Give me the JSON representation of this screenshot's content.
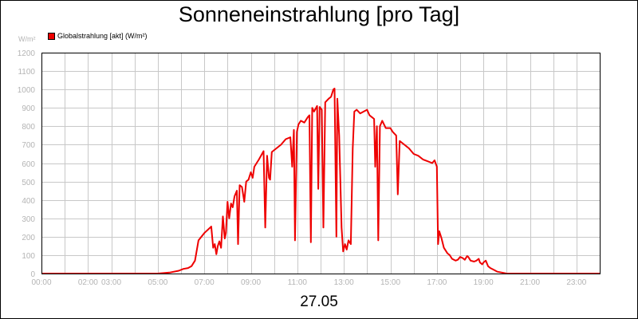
{
  "chart_data": {
    "type": "line",
    "title": "Sonneneinstrahlung [pro Tag]",
    "date": "27.05",
    "y_unit": "W/m²",
    "ylim": [
      0,
      1200
    ],
    "y_ticks": [
      0,
      100,
      200,
      300,
      400,
      500,
      600,
      700,
      800,
      900,
      1000,
      1100,
      1200
    ],
    "xlim": [
      0,
      24
    ],
    "x_ticks": [
      {
        "hour": 0,
        "label": "00:00"
      },
      {
        "hour": 2,
        "label": "02:00"
      },
      {
        "hour": 3,
        "label": "03:00"
      },
      {
        "hour": 5,
        "label": "05:00"
      },
      {
        "hour": 7,
        "label": "07:00"
      },
      {
        "hour": 9,
        "label": "09:00"
      },
      {
        "hour": 11,
        "label": "11:00"
      },
      {
        "hour": 13,
        "label": "13:00"
      },
      {
        "hour": 15,
        "label": "15:00"
      },
      {
        "hour": 17,
        "label": "17:00"
      },
      {
        "hour": 19,
        "label": "19:00"
      },
      {
        "hour": 21,
        "label": "21:00"
      },
      {
        "hour": 23,
        "label": "23:00"
      }
    ],
    "grid": true,
    "legend_position": "top-left",
    "series": [
      {
        "name": "Globalstrahlung [akt] (W/m²)",
        "color": "#ee0000",
        "points": [
          [
            0.0,
            0
          ],
          [
            5.0,
            0
          ],
          [
            5.5,
            5
          ],
          [
            5.9,
            15
          ],
          [
            6.1,
            25
          ],
          [
            6.3,
            30
          ],
          [
            6.45,
            40
          ],
          [
            6.6,
            70
          ],
          [
            6.75,
            180
          ],
          [
            7.0,
            220
          ],
          [
            7.3,
            255
          ],
          [
            7.38,
            140
          ],
          [
            7.45,
            160
          ],
          [
            7.52,
            105
          ],
          [
            7.58,
            150
          ],
          [
            7.65,
            175
          ],
          [
            7.72,
            140
          ],
          [
            7.8,
            310
          ],
          [
            7.88,
            190
          ],
          [
            7.93,
            220
          ],
          [
            8.0,
            390
          ],
          [
            8.07,
            300
          ],
          [
            8.15,
            380
          ],
          [
            8.22,
            360
          ],
          [
            8.3,
            420
          ],
          [
            8.4,
            450
          ],
          [
            8.45,
            160
          ],
          [
            8.52,
            480
          ],
          [
            8.62,
            470
          ],
          [
            8.72,
            390
          ],
          [
            8.8,
            500
          ],
          [
            8.9,
            510
          ],
          [
            9.0,
            550
          ],
          [
            9.08,
            520
          ],
          [
            9.15,
            580
          ],
          [
            9.25,
            600
          ],
          [
            9.35,
            620
          ],
          [
            9.55,
            665
          ],
          [
            9.62,
            250
          ],
          [
            9.7,
            640
          ],
          [
            9.78,
            520
          ],
          [
            9.83,
            510
          ],
          [
            9.9,
            660
          ],
          [
            10.1,
            680
          ],
          [
            10.3,
            700
          ],
          [
            10.5,
            730
          ],
          [
            10.7,
            740
          ],
          [
            10.78,
            580
          ],
          [
            10.85,
            780
          ],
          [
            10.9,
            180
          ],
          [
            10.98,
            770
          ],
          [
            11.05,
            810
          ],
          [
            11.15,
            830
          ],
          [
            11.3,
            820
          ],
          [
            11.45,
            850
          ],
          [
            11.52,
            860
          ],
          [
            11.58,
            170
          ],
          [
            11.64,
            900
          ],
          [
            11.72,
            880
          ],
          [
            11.85,
            910
          ],
          [
            11.9,
            460
          ],
          [
            11.96,
            905
          ],
          [
            12.05,
            890
          ],
          [
            12.12,
            250
          ],
          [
            12.2,
            930
          ],
          [
            12.35,
            950
          ],
          [
            12.45,
            960
          ],
          [
            12.55,
            1000
          ],
          [
            12.6,
            1005
          ],
          [
            12.68,
            200
          ],
          [
            12.72,
            950
          ],
          [
            12.8,
            750
          ],
          [
            12.9,
            250
          ],
          [
            12.97,
            120
          ],
          [
            13.05,
            160
          ],
          [
            13.12,
            130
          ],
          [
            13.2,
            180
          ],
          [
            13.3,
            160
          ],
          [
            13.38,
            680
          ],
          [
            13.45,
            880
          ],
          [
            13.55,
            890
          ],
          [
            13.7,
            870
          ],
          [
            13.85,
            880
          ],
          [
            14.0,
            890
          ],
          [
            14.1,
            860
          ],
          [
            14.2,
            850
          ],
          [
            14.3,
            840
          ],
          [
            14.35,
            580
          ],
          [
            14.42,
            800
          ],
          [
            14.48,
            180
          ],
          [
            14.55,
            800
          ],
          [
            14.65,
            830
          ],
          [
            14.8,
            790
          ],
          [
            15.0,
            790
          ],
          [
            15.1,
            770
          ],
          [
            15.25,
            750
          ],
          [
            15.32,
            430
          ],
          [
            15.4,
            720
          ],
          [
            15.6,
            700
          ],
          [
            15.8,
            680
          ],
          [
            16.0,
            650
          ],
          [
            16.2,
            640
          ],
          [
            16.4,
            620
          ],
          [
            16.6,
            610
          ],
          [
            16.8,
            600
          ],
          [
            16.9,
            615
          ],
          [
            17.0,
            580
          ],
          [
            17.05,
            160
          ],
          [
            17.1,
            230
          ],
          [
            17.2,
            190
          ],
          [
            17.3,
            140
          ],
          [
            17.45,
            110
          ],
          [
            17.55,
            100
          ],
          [
            17.65,
            80
          ],
          [
            17.8,
            70
          ],
          [
            17.9,
            75
          ],
          [
            18.0,
            90
          ],
          [
            18.1,
            85
          ],
          [
            18.2,
            75
          ],
          [
            18.3,
            95
          ],
          [
            18.35,
            90
          ],
          [
            18.45,
            70
          ],
          [
            18.6,
            65
          ],
          [
            18.7,
            70
          ],
          [
            18.8,
            80
          ],
          [
            18.85,
            60
          ],
          [
            18.95,
            50
          ],
          [
            19.0,
            60
          ],
          [
            19.1,
            70
          ],
          [
            19.2,
            40
          ],
          [
            19.3,
            30
          ],
          [
            19.45,
            20
          ],
          [
            19.6,
            10
          ],
          [
            19.8,
            5
          ],
          [
            20.0,
            0
          ],
          [
            24.0,
            0
          ]
        ]
      }
    ]
  }
}
